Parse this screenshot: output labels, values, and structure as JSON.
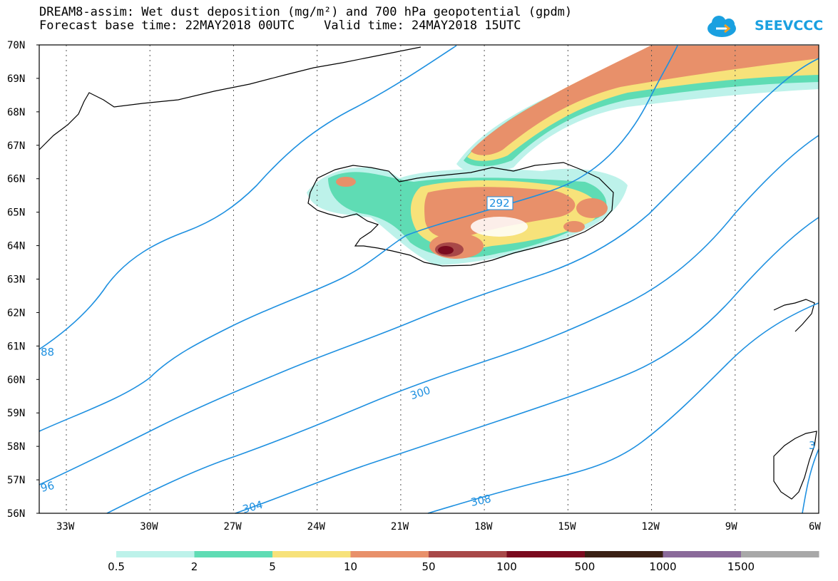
{
  "title": {
    "line1": "DREAM8-assim: Wet dust deposition (mg/m²) and 700 hPa geopotential (gpdm)",
    "line2": "Forecast base time: 22MAY2018 00UTC    Valid time: 24MAY2018 15UTC"
  },
  "logo": {
    "text": "SEEVCCC"
  },
  "map": {
    "region": "North Atlantic / Iceland",
    "lat_labels": [
      "70N",
      "69N",
      "68N",
      "67N",
      "66N",
      "65N",
      "64N",
      "63N",
      "62N",
      "61N",
      "60N",
      "59N",
      "58N",
      "57N",
      "56N"
    ],
    "lon_labels": [
      "33W",
      "30W",
      "27W",
      "24W",
      "21W",
      "18W",
      "15W",
      "12W",
      "9W",
      "6W"
    ]
  },
  "contours": {
    "labels": [
      "292",
      "300",
      "304",
      "308",
      "88",
      "96",
      "3"
    ],
    "color": "#1e90e0"
  },
  "legend": {
    "colors": [
      "#bdf2ea",
      "#5fdcb4",
      "#f7e27a",
      "#e8906a",
      "#a84848",
      "#7a0a1e",
      "#3a2014",
      "#8a6a9a",
      "#a8a8a8"
    ],
    "labels": [
      "0.5",
      "2",
      "5",
      "10",
      "50",
      "100",
      "500",
      "1000",
      "1500"
    ]
  },
  "colors": {
    "deposition_light": "#bdf2ea",
    "deposition_green": "#5fdcb4",
    "deposition_yellow": "#f7e27a",
    "deposition_orange": "#e8906a",
    "deposition_brown": "#a84848",
    "deposition_darkred": "#7a0a1e",
    "contour_blue": "#1e90e0"
  }
}
